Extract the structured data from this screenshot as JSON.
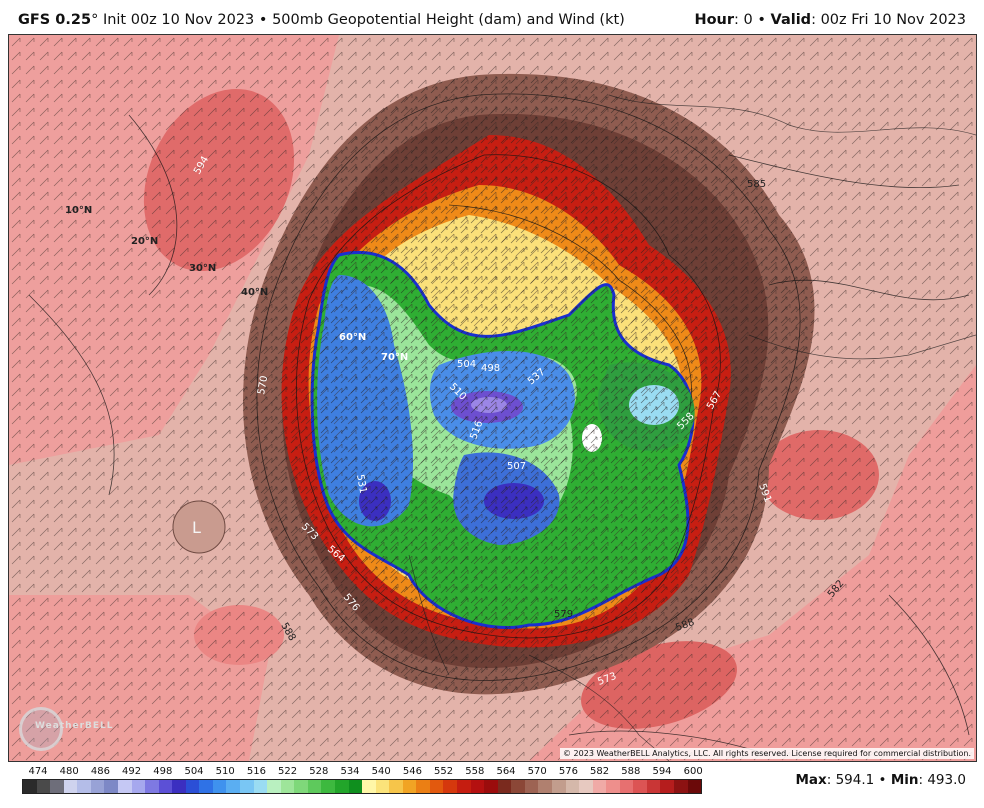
{
  "header": {
    "model": "GFS 0.25",
    "degree": "°",
    "init": "Init 00z 10 Nov 2023",
    "sep": "•",
    "product": "500mb Geopotential Height (dam) and Wind (kt)",
    "hour_label": "Hour",
    "hour_value": ": 0",
    "valid_label": "Valid",
    "valid_value": ": 00z Fri 10 Nov 2023"
  },
  "map": {
    "latitude_labels": [
      "10°N",
      "20°N",
      "30°N",
      "40°N",
      "60°N",
      "70°N"
    ],
    "contour_labels": [
      "594",
      "585",
      "570",
      "567",
      "558",
      "564",
      "573",
      "576",
      "588",
      "591",
      "579",
      "516",
      "504",
      "498",
      "510",
      "507",
      "531",
      "537",
      "582",
      "588",
      "573"
    ],
    "lows": [
      "L"
    ],
    "copyright": "© 2023 WeatherBELL Analytics, LLC. All rights reserved. License required for commercial distribution.",
    "logo_text": "WeatherBELL"
  },
  "colorbar": {
    "labels": [
      "474",
      "480",
      "486",
      "492",
      "498",
      "504",
      "510",
      "516",
      "522",
      "528",
      "534",
      "540",
      "546",
      "552",
      "558",
      "564",
      "570",
      "576",
      "582",
      "588",
      "594",
      "600"
    ],
    "colors": [
      "#2b2b2b",
      "#4a4a4a",
      "#6e6e7a",
      "#cfd3ee",
      "#b4bde8",
      "#98a2d6",
      "#7d88c6",
      "#c5c8f4",
      "#a6a8ee",
      "#7e79e2",
      "#5c50d6",
      "#3b2fc0",
      "#2b4fd6",
      "#2f72e6",
      "#3f92ee",
      "#5aaef2",
      "#79c6f4",
      "#9adcf2",
      "#b9f0c0",
      "#9ee59a",
      "#7fd87a",
      "#5ec95c",
      "#3db93f",
      "#22a52a",
      "#0f8f1e",
      "#fff7a8",
      "#fbe37a",
      "#f6c54a",
      "#f1a424",
      "#eb7f14",
      "#e2590e",
      "#d5380d",
      "#c51d10",
      "#b41010",
      "#9b0c0c",
      "#7a2a1e",
      "#8b4737",
      "#9d6353",
      "#b0806f",
      "#c29d8d",
      "#d5b8aa",
      "#e7c9c0",
      "#f0aaa6",
      "#ee8f8c",
      "#e77070",
      "#dc5454",
      "#c93636",
      "#b51d1d",
      "#8c1212",
      "#6b0909"
    ]
  },
  "stats": {
    "max_label": "Max",
    "max_value": ": 594.1",
    "sep": "•",
    "min_label": "Min",
    "min_value": ": 493.0"
  }
}
